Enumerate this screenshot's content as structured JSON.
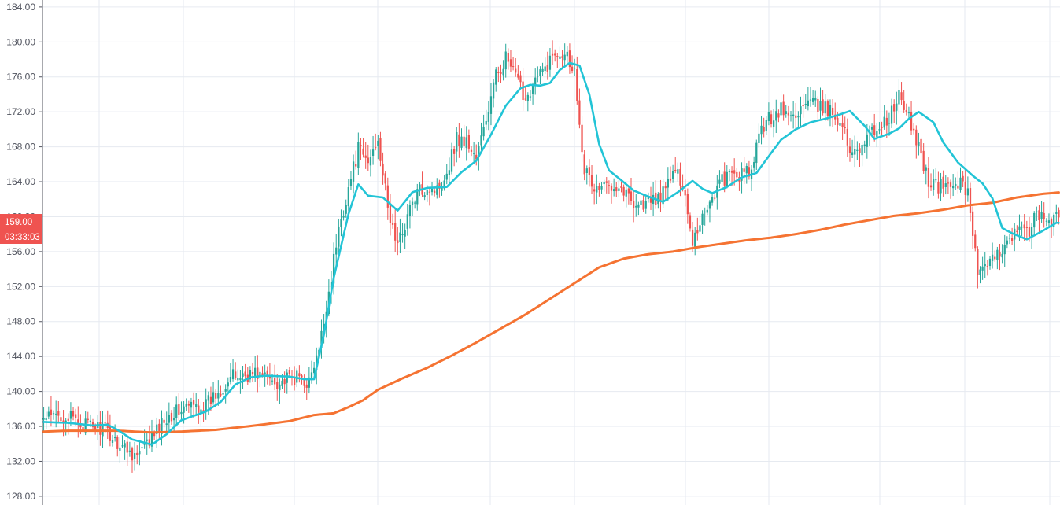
{
  "chart_data": {
    "type": "candlestick",
    "title": "",
    "xlabel": "",
    "ylabel": "",
    "ylim": [
      127.0,
      184.8
    ],
    "yticks": [
      "128.00",
      "132.00",
      "136.00",
      "140.00",
      "144.00",
      "148.00",
      "152.00",
      "156.00",
      "160.00",
      "164.00",
      "168.00",
      "172.00",
      "176.00",
      "180.00",
      "184.00"
    ],
    "grid": true,
    "colors": {
      "up": "#26a69a",
      "down": "#ef5350",
      "fast_ma": "#22c4d6",
      "slow_ma": "#f57332",
      "grid": "#e6eaf0",
      "axis": "#50535e",
      "tag": "#ef5350"
    },
    "price_tag": {
      "value": "159.00",
      "countdown": "03:33:03"
    },
    "anchors": [
      [
        0,
        136.8
      ],
      [
        8,
        137.3
      ],
      [
        16,
        136.2
      ],
      [
        24,
        135.8
      ],
      [
        30,
        134.2
      ],
      [
        38,
        132.6
      ],
      [
        44,
        134.6
      ],
      [
        50,
        137.2
      ],
      [
        58,
        138.2
      ],
      [
        66,
        138.4
      ],
      [
        76,
        141.6
      ],
      [
        86,
        142.1
      ],
      [
        96,
        141.1
      ],
      [
        104,
        141.6
      ],
      [
        108,
        141.0
      ],
      [
        112,
        144.5
      ],
      [
        116,
        151.5
      ],
      [
        120,
        158.5
      ],
      [
        124,
        163.3
      ],
      [
        128,
        167.7
      ],
      [
        132,
        166.1
      ],
      [
        136,
        169.2
      ],
      [
        140,
        160.8
      ],
      [
        144,
        156.6
      ],
      [
        148,
        160.2
      ],
      [
        152,
        162.7
      ],
      [
        156,
        163.5
      ],
      [
        160,
        163.1
      ],
      [
        164,
        165.2
      ],
      [
        168,
        169.0
      ],
      [
        172,
        168.6
      ],
      [
        176,
        166.7
      ],
      [
        180,
        171.1
      ],
      [
        184,
        176.1
      ],
      [
        188,
        178.2
      ],
      [
        192,
        175.9
      ],
      [
        196,
        173.6
      ],
      [
        200,
        175.6
      ],
      [
        204,
        176.9
      ],
      [
        208,
        178.8
      ],
      [
        212,
        179.1
      ],
      [
        216,
        176.7
      ],
      [
        220,
        165.5
      ],
      [
        224,
        163.1
      ],
      [
        228,
        163.4
      ],
      [
        232,
        164.0
      ],
      [
        236,
        163.0
      ],
      [
        240,
        161.7
      ],
      [
        244,
        161.4
      ],
      [
        248,
        161.8
      ],
      [
        252,
        162.6
      ],
      [
        256,
        165.1
      ],
      [
        260,
        164.1
      ],
      [
        264,
        157.2
      ],
      [
        268,
        160.2
      ],
      [
        272,
        162.3
      ],
      [
        276,
        164.3
      ],
      [
        280,
        164.6
      ],
      [
        284,
        164.8
      ],
      [
        288,
        165.1
      ],
      [
        292,
        170.2
      ],
      [
        296,
        171.4
      ],
      [
        300,
        172.3
      ],
      [
        304,
        171.3
      ],
      [
        308,
        172.4
      ],
      [
        312,
        173.0
      ],
      [
        316,
        172.5
      ],
      [
        320,
        172.1
      ],
      [
        324,
        171.1
      ],
      [
        328,
        167.6
      ],
      [
        332,
        168.1
      ],
      [
        336,
        169.3
      ],
      [
        340,
        170.4
      ],
      [
        344,
        171.2
      ],
      [
        348,
        173.8
      ],
      [
        352,
        171.1
      ],
      [
        356,
        168.1
      ],
      [
        360,
        164.1
      ],
      [
        364,
        163.4
      ],
      [
        368,
        163.6
      ],
      [
        372,
        163.9
      ],
      [
        376,
        163.1
      ],
      [
        380,
        153.6
      ],
      [
        384,
        154.1
      ],
      [
        388,
        155.5
      ],
      [
        392,
        157.6
      ],
      [
        396,
        158.3
      ],
      [
        400,
        158.1
      ],
      [
        404,
        160.1
      ],
      [
        408,
        159.6
      ],
      [
        412,
        160.1
      ]
    ],
    "fast_ma": [
      [
        0,
        136.5
      ],
      [
        10,
        136.4
      ],
      [
        20,
        136.1
      ],
      [
        26,
        136.2
      ],
      [
        30,
        135.6
      ],
      [
        36,
        134.5
      ],
      [
        44,
        133.9
      ],
      [
        50,
        135.1
      ],
      [
        56,
        136.7
      ],
      [
        66,
        137.7
      ],
      [
        72,
        138.8
      ],
      [
        78,
        140.8
      ],
      [
        84,
        141.6
      ],
      [
        90,
        141.8
      ],
      [
        100,
        141.7
      ],
      [
        106,
        141.4
      ],
      [
        110,
        141.4
      ],
      [
        114,
        146.5
      ],
      [
        118,
        153.0
      ],
      [
        124,
        160.3
      ],
      [
        128,
        163.7
      ],
      [
        132,
        162.4
      ],
      [
        138,
        162.2
      ],
      [
        144,
        160.7
      ],
      [
        150,
        162.8
      ],
      [
        156,
        163.3
      ],
      [
        164,
        163.4
      ],
      [
        170,
        165.1
      ],
      [
        176,
        166.4
      ],
      [
        182,
        169.4
      ],
      [
        188,
        172.7
      ],
      [
        194,
        174.7
      ],
      [
        198,
        175.1
      ],
      [
        202,
        175.0
      ],
      [
        206,
        175.3
      ],
      [
        210,
        176.8
      ],
      [
        214,
        177.6
      ],
      [
        218,
        177.3
      ],
      [
        222,
        174.0
      ],
      [
        226,
        168.3
      ],
      [
        230,
        165.3
      ],
      [
        234,
        164.4
      ],
      [
        240,
        163.0
      ],
      [
        246,
        162.3
      ],
      [
        252,
        161.7
      ],
      [
        258,
        162.8
      ],
      [
        264,
        164.1
      ],
      [
        268,
        163.2
      ],
      [
        272,
        162.7
      ],
      [
        278,
        163.4
      ],
      [
        284,
        164.5
      ],
      [
        290,
        165.0
      ],
      [
        296,
        167.3
      ],
      [
        300,
        168.8
      ],
      [
        306,
        170.0
      ],
      [
        312,
        170.8
      ],
      [
        318,
        171.2
      ],
      [
        324,
        171.7
      ],
      [
        328,
        172.1
      ],
      [
        334,
        170.4
      ],
      [
        338,
        168.9
      ],
      [
        344,
        169.5
      ],
      [
        348,
        170.1
      ],
      [
        352,
        171.2
      ],
      [
        356,
        172.0
      ],
      [
        362,
        170.8
      ],
      [
        366,
        168.5
      ],
      [
        372,
        166.2
      ],
      [
        378,
        164.7
      ],
      [
        382,
        163.8
      ],
      [
        386,
        162.1
      ],
      [
        390,
        158.7
      ],
      [
        394,
        158.1
      ],
      [
        400,
        157.4
      ],
      [
        406,
        158.3
      ],
      [
        412,
        159.3
      ]
    ],
    "slow_ma": [
      [
        0,
        135.4
      ],
      [
        10,
        135.5
      ],
      [
        30,
        135.5
      ],
      [
        44,
        135.3
      ],
      [
        56,
        135.4
      ],
      [
        70,
        135.6
      ],
      [
        86,
        136.1
      ],
      [
        100,
        136.6
      ],
      [
        110,
        137.3
      ],
      [
        118,
        137.5
      ],
      [
        124,
        138.2
      ],
      [
        130,
        139.0
      ],
      [
        136,
        140.2
      ],
      [
        146,
        141.5
      ],
      [
        156,
        142.7
      ],
      [
        166,
        144.1
      ],
      [
        176,
        145.6
      ],
      [
        186,
        147.2
      ],
      [
        196,
        148.8
      ],
      [
        206,
        150.6
      ],
      [
        216,
        152.4
      ],
      [
        226,
        154.2
      ],
      [
        236,
        155.2
      ],
      [
        246,
        155.7
      ],
      [
        256,
        156.0
      ],
      [
        266,
        156.5
      ],
      [
        276,
        156.9
      ],
      [
        286,
        157.3
      ],
      [
        296,
        157.6
      ],
      [
        306,
        158.0
      ],
      [
        316,
        158.5
      ],
      [
        326,
        159.1
      ],
      [
        336,
        159.6
      ],
      [
        346,
        160.1
      ],
      [
        356,
        160.4
      ],
      [
        366,
        160.8
      ],
      [
        376,
        161.3
      ],
      [
        386,
        161.6
      ],
      [
        396,
        162.2
      ],
      [
        406,
        162.6
      ],
      [
        414,
        162.8
      ]
    ]
  }
}
